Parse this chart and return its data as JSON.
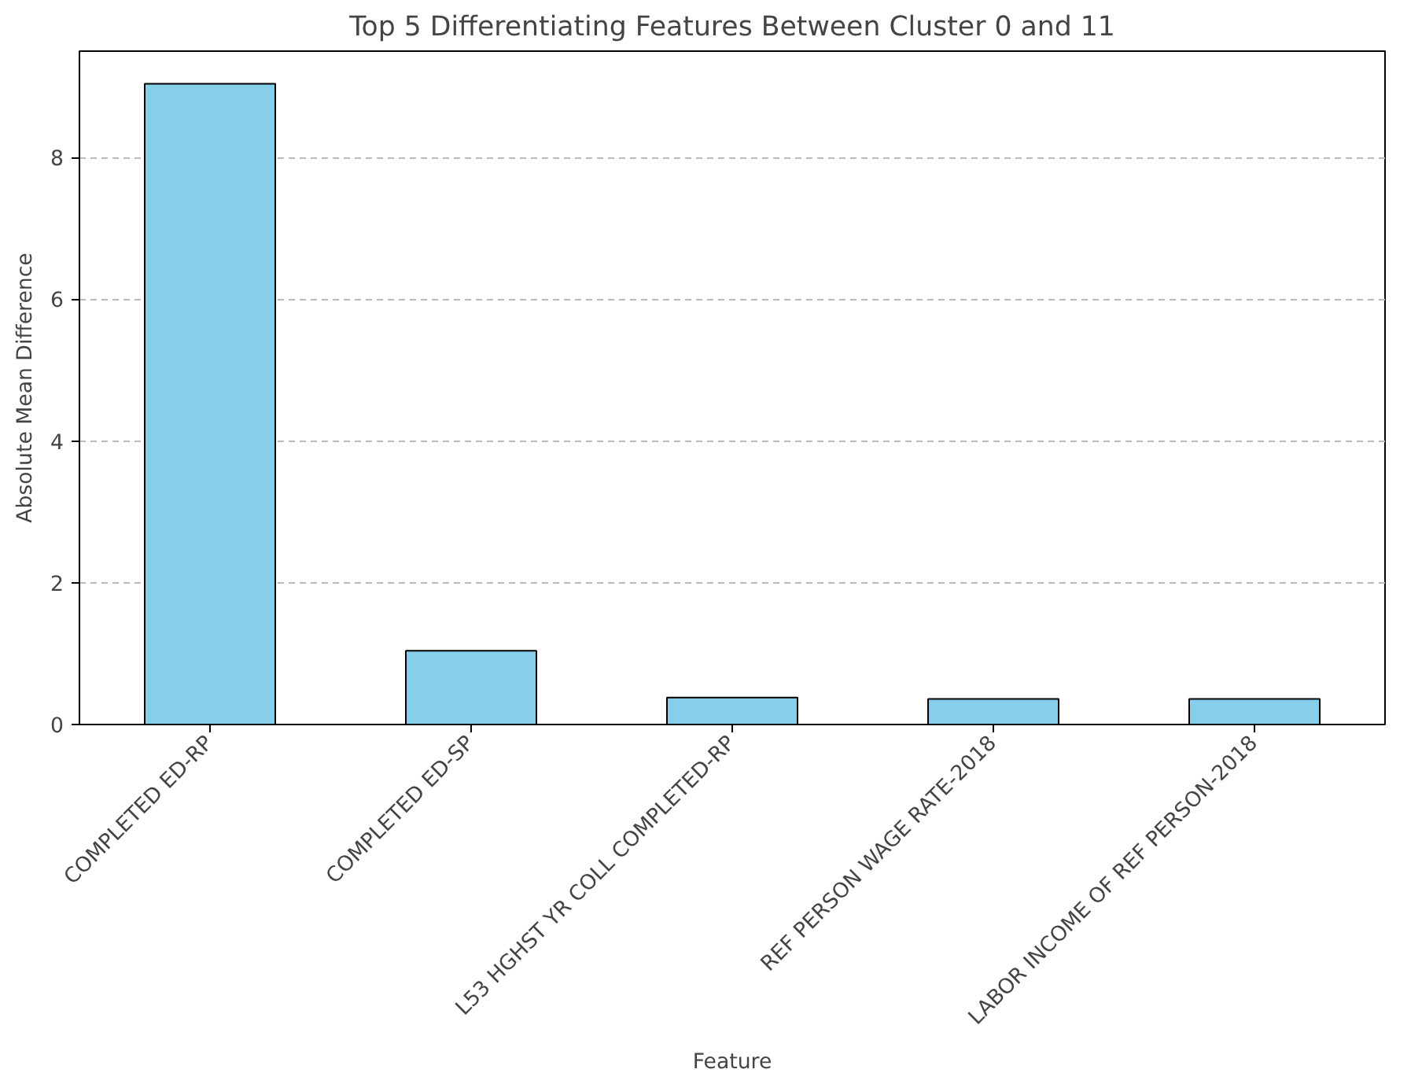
{
  "chart_data": {
    "type": "bar",
    "title": "Top 5 Differentiating Features Between Cluster 0 and 11",
    "xlabel": "Feature",
    "ylabel": "Absolute Mean Difference",
    "categories": [
      "COMPLETED ED-RP",
      "COMPLETED ED-SP",
      "L53 HGHST YR COLL COMPLETED-RP",
      "REF PERSON WAGE RATE-2018",
      "LABOR INCOME OF REF PERSON-2018"
    ],
    "values": [
      9.04,
      1.04,
      0.38,
      0.36,
      0.36
    ],
    "color": "#87ceeb",
    "ylim": [
      0,
      9.5
    ],
    "yticks": [
      0,
      2,
      4,
      6,
      8
    ],
    "grid": "y"
  }
}
